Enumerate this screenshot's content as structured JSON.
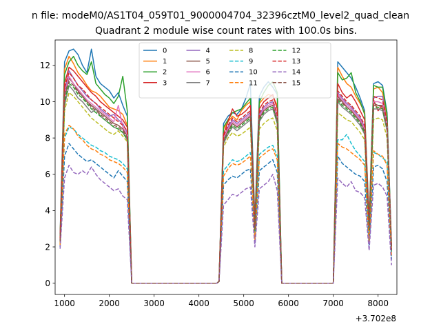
{
  "chart_data": {
    "type": "line",
    "suptitle": "n file: modeM0/AS1T04_059T01_9000004704_32396cztM0_level2_quad_clean",
    "title": "Quadrant 2 module wise count rates with 100.0s bins.",
    "xlabel": "",
    "ylabel": "",
    "offset_text": "+3.702e8",
    "xlim": [
      790,
      8420
    ],
    "ylim": [
      -0.62,
      13.4
    ],
    "xticks": [
      1000,
      2000,
      3000,
      4000,
      5000,
      6000,
      7000,
      8000
    ],
    "xtick_labels": [
      "1000",
      "2000",
      "3000",
      "4000",
      "5000",
      "6000",
      "7000",
      "8000"
    ],
    "yticks": [
      0,
      2,
      4,
      6,
      8,
      10,
      12
    ],
    "ytick_labels": [
      "0",
      "2",
      "4",
      "6",
      "8",
      "10",
      "12"
    ],
    "grid": false,
    "legend": {
      "placement": "top-center",
      "columns": 4
    },
    "x": [
      900,
      1000,
      1100,
      1200,
      1300,
      1400,
      1500,
      1600,
      1700,
      1800,
      1900,
      2000,
      2100,
      2200,
      2300,
      2400,
      2500,
      2600,
      3000,
      3500,
      4000,
      4400,
      4450,
      4550,
      4650,
      4750,
      4850,
      4950,
      5050,
      5150,
      5250,
      5350,
      5450,
      5550,
      5650,
      5750,
      5850,
      6200,
      6600,
      7000,
      7100,
      7200,
      7300,
      7400,
      7500,
      7600,
      7700,
      7800,
      7900,
      8000,
      8100,
      8200,
      8300
    ],
    "series": [
      {
        "name": "0",
        "color": "#1f77b4",
        "dash": "solid",
        "values": [
          2.7,
          12.2,
          12.8,
          12.9,
          12.6,
          12.0,
          11.6,
          12.9,
          11.4,
          11.0,
          10.8,
          10.6,
          10.2,
          10.5,
          9.8,
          9.2,
          0.0,
          0.0,
          0.0,
          0.0,
          0.0,
          0.0,
          0.1,
          8.8,
          9.2,
          9.4,
          9.3,
          9.6,
          10.2,
          11.0,
          3.5,
          10.3,
          10.8,
          11.1,
          10.8,
          10.4,
          0.0,
          0.0,
          0.0,
          0.0,
          12.2,
          11.9,
          11.6,
          11.3,
          10.8,
          10.2,
          9.5,
          3.5,
          11.0,
          11.1,
          10.9,
          9.4,
          2.1
        ]
      },
      {
        "name": "1",
        "color": "#ff7f0e",
        "dash": "solid",
        "values": [
          2.6,
          11.8,
          12.5,
          12.1,
          11.6,
          11.3,
          10.9,
          10.6,
          10.5,
          10.3,
          10.0,
          9.7,
          9.6,
          9.5,
          9.3,
          8.7,
          0.0,
          0.0,
          0.0,
          0.0,
          0.0,
          0.0,
          0.1,
          8.5,
          8.9,
          9.2,
          9.0,
          9.5,
          9.8,
          10.0,
          3.4,
          9.9,
          10.2,
          10.4,
          10.3,
          9.8,
          0.0,
          0.0,
          0.0,
          0.0,
          11.9,
          11.4,
          11.0,
          10.8,
          10.3,
          9.9,
          9.4,
          3.4,
          10.7,
          10.8,
          10.5,
          9.1,
          2.0
        ]
      },
      {
        "name": "2",
        "color": "#2ca02c",
        "dash": "solid",
        "values": [
          2.5,
          11.5,
          12.2,
          12.5,
          12.0,
          11.7,
          11.5,
          12.2,
          11.0,
          10.7,
          10.4,
          10.2,
          9.9,
          10.3,
          11.4,
          9.5,
          0.0,
          0.0,
          0.0,
          0.0,
          0.0,
          0.0,
          0.1,
          8.6,
          9.0,
          9.4,
          9.5,
          9.6,
          9.9,
          10.2,
          3.3,
          10.0,
          10.5,
          10.9,
          11.1,
          10.5,
          0.0,
          0.0,
          0.0,
          0.0,
          11.6,
          11.2,
          11.3,
          11.6,
          10.5,
          10.0,
          9.3,
          3.3,
          10.9,
          10.8,
          10.8,
          9.3,
          2.0
        ]
      },
      {
        "name": "3",
        "color": "#d62728",
        "dash": "solid",
        "values": [
          2.4,
          11.0,
          11.9,
          11.7,
          11.4,
          11.1,
          10.8,
          10.5,
          10.3,
          10.0,
          9.8,
          9.6,
          9.4,
          9.2,
          9.0,
          8.6,
          0.0,
          0.0,
          0.0,
          0.0,
          0.0,
          0.0,
          0.1,
          8.2,
          8.9,
          9.6,
          9.2,
          9.3,
          9.5,
          9.8,
          3.2,
          9.6,
          10.0,
          10.2,
          10.4,
          9.6,
          0.0,
          0.0,
          0.0,
          0.0,
          11.0,
          10.5,
          10.2,
          10.4,
          10.0,
          9.5,
          9.0,
          3.2,
          10.1,
          9.5,
          9.8,
          8.7,
          1.9
        ]
      },
      {
        "name": "4",
        "color": "#9467bd",
        "dash": "solid",
        "values": [
          2.4,
          10.5,
          11.7,
          11.3,
          10.9,
          10.6,
          10.3,
          10.1,
          9.9,
          9.6,
          9.4,
          9.2,
          9.3,
          9.0,
          8.8,
          8.3,
          0.0,
          0.0,
          0.0,
          0.0,
          0.0,
          0.0,
          0.1,
          8.0,
          8.6,
          9.0,
          8.8,
          9.0,
          9.2,
          9.4,
          3.1,
          9.3,
          9.7,
          9.9,
          10.0,
          9.2,
          0.0,
          0.0,
          0.0,
          0.0,
          10.5,
          10.2,
          9.9,
          9.7,
          9.4,
          9.1,
          8.6,
          3.1,
          10.2,
          10.3,
          10.3,
          8.8,
          1.9
        ]
      },
      {
        "name": "5",
        "color": "#8c564b",
        "dash": "solid",
        "values": [
          2.3,
          10.2,
          11.3,
          11.0,
          10.6,
          10.3,
          10.0,
          9.8,
          9.6,
          9.4,
          9.2,
          9.0,
          8.8,
          8.7,
          8.5,
          8.1,
          0.0,
          0.0,
          0.0,
          0.0,
          0.0,
          0.0,
          0.1,
          7.9,
          8.4,
          8.8,
          8.6,
          8.8,
          9.0,
          9.2,
          3.0,
          9.1,
          9.5,
          9.7,
          9.8,
          9.0,
          0.0,
          0.0,
          0.0,
          0.0,
          10.3,
          10.0,
          9.7,
          9.5,
          9.2,
          8.9,
          8.4,
          3.0,
          9.9,
          9.8,
          9.8,
          8.6,
          1.8
        ]
      },
      {
        "name": "6",
        "color": "#e377c2",
        "dash": "solid",
        "values": [
          2.3,
          10.4,
          11.4,
          11.0,
          10.7,
          10.4,
          10.1,
          9.9,
          9.7,
          9.5,
          9.3,
          9.1,
          8.9,
          9.8,
          8.6,
          8.2,
          0.0,
          0.0,
          0.0,
          0.0,
          0.0,
          0.0,
          0.1,
          8.0,
          8.5,
          8.9,
          8.7,
          8.9,
          9.1,
          9.3,
          3.0,
          9.2,
          9.6,
          9.8,
          9.9,
          9.1,
          0.0,
          0.0,
          0.0,
          0.0,
          10.4,
          10.1,
          9.8,
          9.6,
          9.3,
          9.0,
          8.5,
          3.0,
          10.0,
          10.0,
          9.9,
          8.7,
          1.8
        ]
      },
      {
        "name": "7",
        "color": "#7f7f7f",
        "dash": "solid",
        "values": [
          2.2,
          9.8,
          10.9,
          10.6,
          10.2,
          10.0,
          9.7,
          9.4,
          9.6,
          9.2,
          9.0,
          8.8,
          8.6,
          8.5,
          8.3,
          7.9,
          0.0,
          0.0,
          0.0,
          0.0,
          0.0,
          0.0,
          0.1,
          7.7,
          8.2,
          8.6,
          8.4,
          8.6,
          8.8,
          9.0,
          2.9,
          8.9,
          9.3,
          9.5,
          9.6,
          8.8,
          0.0,
          0.0,
          0.0,
          0.0,
          10.0,
          9.7,
          9.5,
          9.3,
          9.0,
          8.7,
          8.2,
          2.9,
          9.6,
          9.6,
          9.5,
          8.4,
          1.8
        ]
      },
      {
        "name": "8",
        "color": "#bcbd22",
        "dash": "dashed",
        "values": [
          2.2,
          9.5,
          10.5,
          10.3,
          10.0,
          9.7,
          9.4,
          9.1,
          8.9,
          8.7,
          8.5,
          8.3,
          8.2,
          8.4,
          8.1,
          7.8,
          0.0,
          0.0,
          0.0,
          0.0,
          0.0,
          0.0,
          0.1,
          7.5,
          8.0,
          8.3,
          8.1,
          8.2,
          8.4,
          8.6,
          2.8,
          8.5,
          8.8,
          9.0,
          9.1,
          8.4,
          0.0,
          0.0,
          0.0,
          0.0,
          9.4,
          9.2,
          9.0,
          8.9,
          8.6,
          8.3,
          7.9,
          2.8,
          9.0,
          9.1,
          9.0,
          8.0,
          1.7
        ]
      },
      {
        "name": "9",
        "color": "#17becf",
        "dash": "dashed",
        "values": [
          2.1,
          8.0,
          8.6,
          8.5,
          8.2,
          8.0,
          7.8,
          7.6,
          7.5,
          7.3,
          7.2,
          7.0,
          6.9,
          6.8,
          6.6,
          6.3,
          0.0,
          0.0,
          0.0,
          0.0,
          0.0,
          0.0,
          0.1,
          6.2,
          6.5,
          6.8,
          6.7,
          6.8,
          7.0,
          7.2,
          2.5,
          7.1,
          7.3,
          7.5,
          7.6,
          7.0,
          0.0,
          0.0,
          0.0,
          0.0,
          7.9,
          7.9,
          8.2,
          7.7,
          7.3,
          7.0,
          6.7,
          2.4,
          7.2,
          7.1,
          6.9,
          6.7,
          1.5
        ]
      },
      {
        "name": "10",
        "color": "#1f77b4",
        "dash": "dashed",
        "values": [
          2.0,
          7.0,
          7.7,
          7.4,
          7.1,
          6.9,
          6.7,
          6.8,
          6.6,
          6.4,
          6.2,
          6.0,
          5.8,
          6.2,
          5.9,
          5.6,
          0.0,
          0.0,
          0.0,
          0.0,
          0.0,
          0.0,
          0.1,
          5.4,
          5.7,
          5.9,
          5.8,
          6.0,
          6.2,
          6.3,
          2.2,
          6.2,
          6.4,
          6.6,
          6.8,
          6.1,
          0.0,
          0.0,
          0.0,
          0.0,
          7.0,
          6.6,
          6.4,
          6.2,
          6.0,
          5.9,
          5.6,
          2.1,
          6.4,
          6.5,
          6.3,
          5.6,
          1.3
        ]
      },
      {
        "name": "11",
        "color": "#ff7f0e",
        "dash": "dashed",
        "values": [
          2.1,
          8.2,
          8.7,
          8.5,
          8.1,
          7.9,
          7.6,
          7.4,
          7.3,
          7.1,
          7.0,
          6.8,
          6.7,
          6.6,
          6.4,
          6.1,
          0.0,
          0.0,
          0.0,
          0.0,
          0.0,
          0.0,
          0.1,
          5.9,
          6.3,
          6.6,
          6.5,
          6.6,
          6.8,
          7.0,
          2.4,
          6.9,
          7.1,
          7.3,
          7.4,
          6.8,
          0.0,
          0.0,
          0.0,
          0.0,
          7.7,
          7.5,
          7.4,
          7.2,
          7.0,
          6.8,
          6.5,
          2.3,
          7.3,
          7.1,
          7.0,
          6.5,
          1.5
        ]
      },
      {
        "name": "12",
        "color": "#2ca02c",
        "dash": "dashed",
        "values": [
          2.3,
          10.0,
          11.0,
          10.8,
          10.4,
          10.2,
          9.9,
          9.6,
          9.4,
          9.2,
          9.0,
          8.8,
          8.6,
          8.5,
          8.3,
          7.9,
          0.0,
          0.0,
          0.0,
          0.0,
          0.0,
          0.0,
          0.1,
          7.8,
          8.3,
          8.7,
          8.5,
          8.7,
          8.9,
          9.1,
          2.9,
          9.0,
          9.4,
          9.6,
          9.7,
          8.9,
          0.0,
          0.0,
          0.0,
          0.0,
          10.1,
          9.8,
          9.6,
          9.4,
          9.1,
          8.8,
          8.3,
          2.9,
          9.7,
          9.7,
          9.6,
          8.5,
          1.8
        ]
      },
      {
        "name": "13",
        "color": "#d62728",
        "dash": "dashed",
        "values": [
          2.4,
          10.8,
          11.6,
          11.3,
          10.9,
          10.7,
          10.4,
          10.1,
          9.9,
          9.7,
          9.5,
          9.3,
          9.1,
          8.9,
          8.7,
          8.4,
          0.0,
          0.0,
          0.0,
          0.0,
          0.0,
          0.0,
          0.1,
          8.1,
          8.7,
          9.1,
          8.9,
          9.1,
          9.3,
          9.5,
          3.1,
          9.4,
          9.8,
          10.0,
          10.1,
          9.3,
          0.0,
          0.0,
          0.0,
          0.0,
          10.6,
          10.3,
          10.0,
          9.8,
          9.5,
          9.2,
          8.7,
          3.1,
          10.3,
          10.2,
          10.1,
          8.9,
          1.9
        ]
      },
      {
        "name": "14",
        "color": "#9467bd",
        "dash": "dashed",
        "values": [
          1.9,
          5.8,
          6.5,
          6.1,
          6.0,
          6.2,
          6.0,
          6.4,
          6.0,
          5.7,
          5.5,
          5.3,
          5.1,
          5.2,
          4.8,
          4.6,
          0.0,
          0.0,
          0.0,
          0.0,
          0.0,
          0.0,
          0.1,
          4.3,
          4.6,
          4.9,
          4.8,
          5.0,
          5.2,
          5.3,
          2.0,
          5.2,
          5.4,
          5.6,
          6.0,
          5.1,
          0.0,
          0.0,
          0.0,
          0.0,
          5.8,
          5.5,
          5.3,
          5.6,
          5.1,
          5.0,
          4.7,
          1.8,
          5.4,
          5.5,
          5.3,
          4.8,
          1.0
        ]
      },
      {
        "name": "15",
        "color": "#8c564b",
        "dash": "dashed",
        "values": [
          2.3,
          10.5,
          11.1,
          10.9,
          10.5,
          10.3,
          10.0,
          9.7,
          9.5,
          9.3,
          9.1,
          8.9,
          8.7,
          8.6,
          8.4,
          8.0,
          0.0,
          0.0,
          0.0,
          0.0,
          0.0,
          0.0,
          0.1,
          7.8,
          8.4,
          8.8,
          8.6,
          8.8,
          9.0,
          9.2,
          3.0,
          9.1,
          9.5,
          9.7,
          9.8,
          9.0,
          0.0,
          0.0,
          0.0,
          0.0,
          10.2,
          9.9,
          9.7,
          9.5,
          9.2,
          8.9,
          8.4,
          3.0,
          9.8,
          9.8,
          9.7,
          8.6,
          1.8
        ]
      }
    ]
  }
}
